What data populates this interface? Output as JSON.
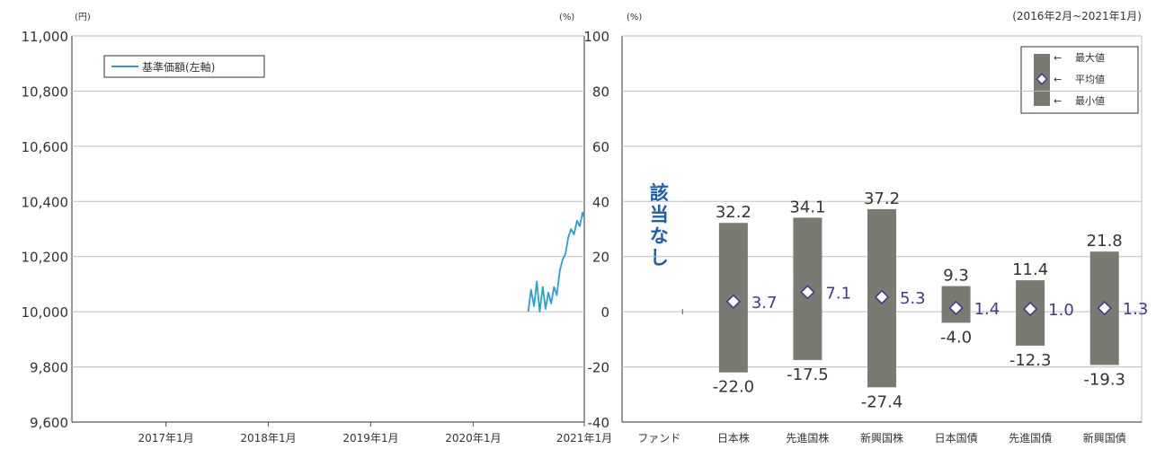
{
  "colors": {
    "line": "#2a9fd6",
    "bar": "#7a7a72",
    "avg_label": "#3c3c8c",
    "axis": "#555555",
    "grid": "#bdbdbd",
    "text": "#333333",
    "na_text": "#1a5fb4"
  },
  "chart_data": [
    {
      "type": "line",
      "title": "",
      "y_unit": "(円)",
      "legend": {
        "label": "基準価額(左軸)",
        "position": "top-left"
      },
      "ylim": [
        9600,
        11000
      ],
      "y_ticks": [
        "11,000",
        "10,800",
        "10,600",
        "10,400",
        "10,200",
        "10,000",
        "9,800",
        "9,600"
      ],
      "x_ticks": [
        "2017年1月",
        "2018年1月",
        "2019年1月",
        "2020年1月",
        "2021年1月"
      ],
      "grid": true,
      "series": [
        {
          "x": [
            "2020-07-15",
            "2020-07-25",
            "2020-08-05",
            "2020-08-15",
            "2020-08-25",
            "2020-09-05",
            "2020-09-15",
            "2020-09-25",
            "2020-10-05",
            "2020-10-15",
            "2020-10-25",
            "2020-11-05",
            "2020-11-15",
            "2020-11-25",
            "2020-12-05",
            "2020-12-15",
            "2020-12-25",
            "2021-01-05",
            "2021-01-15",
            "2021-01-25",
            "2021-01-31"
          ],
          "values": [
            10000,
            10080,
            10020,
            10110,
            10000,
            10090,
            10010,
            10070,
            10030,
            10090,
            10060,
            10150,
            10190,
            10210,
            10270,
            10300,
            10280,
            10330,
            10310,
            10360,
            10340
          ]
        }
      ]
    },
    {
      "type": "bar",
      "title": "",
      "period": "(2016年2月~2021年1月)",
      "y_unit_left": "(%)",
      "y_unit_right": "(%)",
      "ylim": [
        -40,
        100
      ],
      "y_ticks": [
        "100",
        "80",
        "60",
        "40",
        "20",
        "0",
        "-20",
        "-40"
      ],
      "grid": true,
      "legend": {
        "items": [
          "最大値",
          "平均値",
          "最小値"
        ],
        "position": "top-right"
      },
      "categories": [
        "ファンド",
        "日本株",
        "先進国株",
        "新興国株",
        "日本国債",
        "先進国債",
        "新興国債"
      ],
      "na_label": "該当なし",
      "series": [
        {
          "name": "最大値",
          "values": [
            null,
            32.2,
            34.1,
            37.2,
            9.3,
            11.4,
            21.8
          ]
        },
        {
          "name": "平均値",
          "values": [
            null,
            3.7,
            7.1,
            5.3,
            1.4,
            1.0,
            1.3
          ]
        },
        {
          "name": "最小値",
          "values": [
            null,
            -22.0,
            -17.5,
            -27.4,
            -4.0,
            -12.3,
            -19.3
          ]
        }
      ],
      "max_labels": [
        "",
        "32.2",
        "34.1",
        "37.2",
        "9.3",
        "11.4",
        "21.8"
      ],
      "avg_labels": [
        "",
        "3.7",
        "7.1",
        "5.3",
        "1.4",
        "1.0",
        "1.3"
      ],
      "min_labels": [
        "",
        "-22.0",
        "-17.5",
        "-27.4",
        "-4.0",
        "-12.3",
        "-19.3"
      ]
    }
  ]
}
